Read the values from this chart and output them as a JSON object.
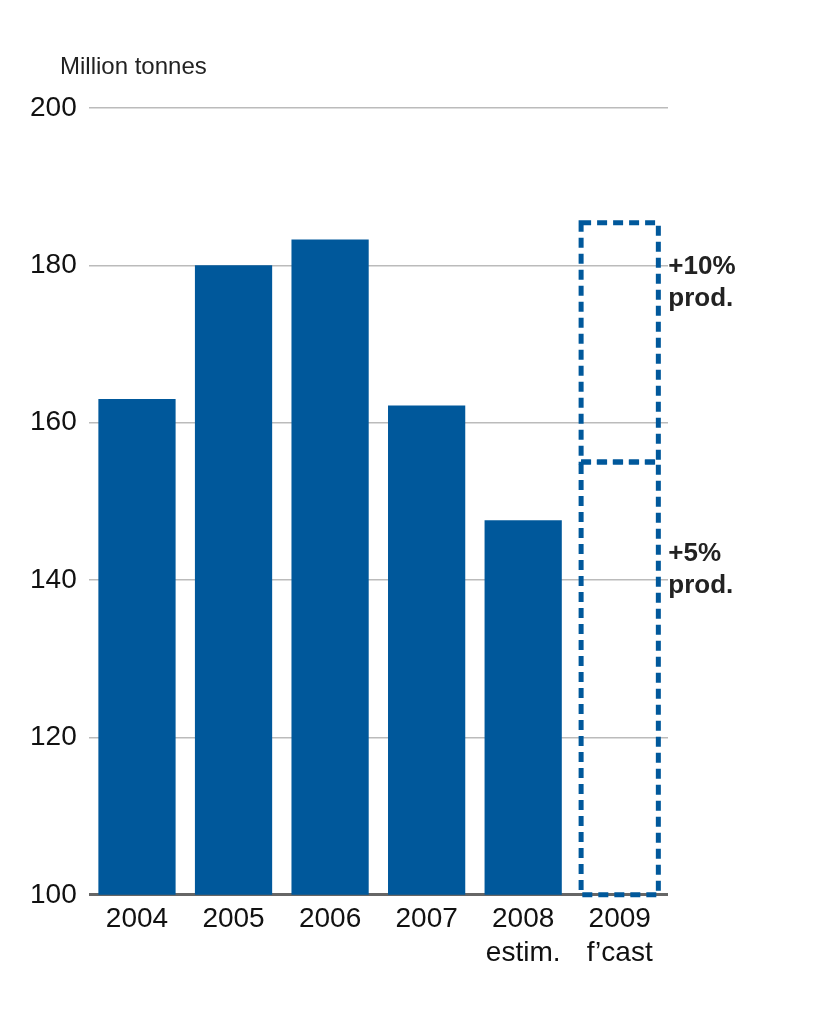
{
  "chart_data": {
    "type": "bar",
    "ylabel": "Million tonnes",
    "categories": [
      "2004",
      "2005",
      "2006",
      "2007",
      "2008 estim.",
      "2009 f’cast"
    ],
    "ylim": [
      100,
      200
    ],
    "yticks": [
      100,
      120,
      140,
      160,
      180,
      200
    ],
    "grid": "y",
    "legend": false,
    "series": [
      {
        "color": "#00589b",
        "values": [
          163,
          180,
          183.3,
          162.2,
          147.6,
          null
        ]
      },
      {
        "name": "+5% prod.",
        "color": "#00589b",
        "line_style": "dashed",
        "values": [
          null,
          null,
          null,
          null,
          null,
          155
        ]
      },
      {
        "name": "+10% prod.",
        "color": "#00589b",
        "line_style": "dashed",
        "base": [
          null,
          null,
          null,
          null,
          null,
          155
        ],
        "values": [
          null,
          null,
          null,
          null,
          null,
          30.4
        ]
      }
    ]
  }
}
